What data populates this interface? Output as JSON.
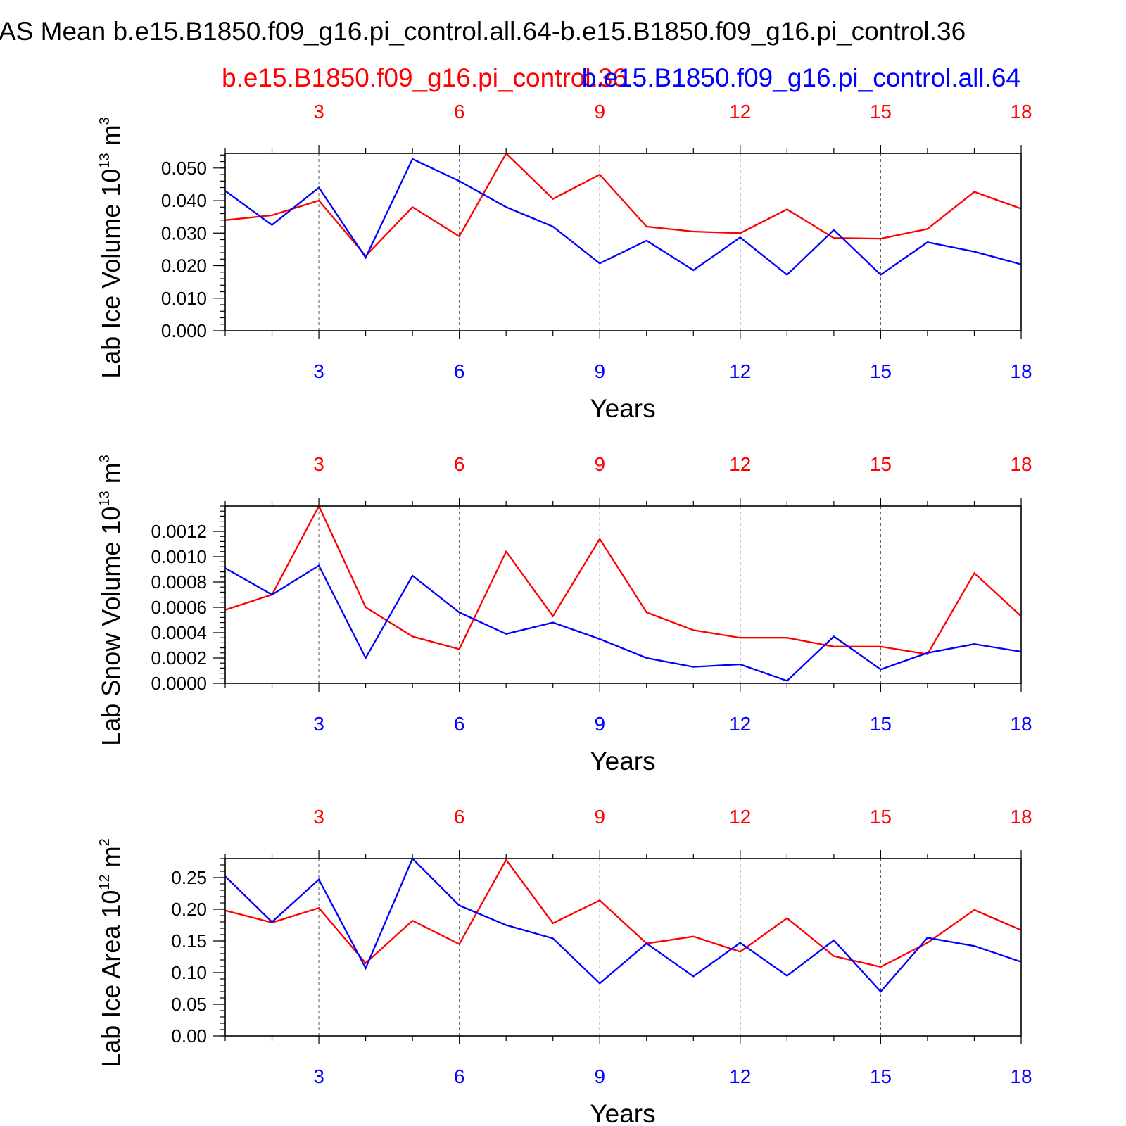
{
  "figure": {
    "main_title": "AS Mean b.e15.B1850.f09_g16.pi_control.all.64-b.e15.B1850.f09_g16.pi_control.36",
    "legend_red": "b.e15.B1850.f09_g16.pi_control.36",
    "legend_blue": "b.e15.B1850.f09_g16.pi_control.all.64",
    "colors": {
      "red": "#ff0000",
      "blue": "#0000ff"
    }
  },
  "chart_data": [
    {
      "type": "line",
      "id": "ice-volume",
      "ylabel": "Lab Ice Volume 10",
      "ylabel_exp": "13",
      "ylabel_unit": " m",
      "ylabel_unit_exp": "3",
      "xlabel": "Years",
      "xlim": [
        1,
        18
      ],
      "ylim": [
        0,
        0.0545
      ],
      "xticks": [
        3,
        6,
        9,
        12,
        15,
        18
      ],
      "yticks": [
        0.0,
        0.01,
        0.02,
        0.03,
        0.04,
        0.05
      ],
      "ytick_labels": [
        "0.000",
        "0.010",
        "0.020",
        "0.030",
        "0.040",
        "0.050"
      ],
      "yminor_step": 0.002,
      "x": [
        1,
        2,
        3,
        4,
        5,
        6,
        7,
        8,
        9,
        10,
        11,
        12,
        13,
        14,
        15,
        16,
        17,
        18
      ],
      "series": [
        {
          "name": "b.e15.B1850.f09_g16.pi_control.36",
          "color": "#ff0000",
          "values": [
            0.034,
            0.0355,
            0.04,
            0.023,
            0.038,
            0.029,
            0.0545,
            0.0405,
            0.048,
            0.032,
            0.0305,
            0.03,
            0.0373,
            0.0285,
            0.0283,
            0.0313,
            0.0427,
            0.0375
          ]
        },
        {
          "name": "b.e15.B1850.f09_g16.pi_control.all.64",
          "color": "#0000ff",
          "values": [
            0.043,
            0.0325,
            0.044,
            0.0225,
            0.0528,
            0.046,
            0.038,
            0.032,
            0.0207,
            0.0277,
            0.0186,
            0.0287,
            0.0172,
            0.031,
            0.0172,
            0.0272,
            0.0243,
            0.0204
          ]
        }
      ]
    },
    {
      "type": "line",
      "id": "snow-volume",
      "ylabel": "Lab Snow Volume 10",
      "ylabel_exp": "13",
      "ylabel_unit": " m",
      "ylabel_unit_exp": "3",
      "xlabel": "Years",
      "xlim": [
        1,
        18
      ],
      "ylim": [
        0,
        0.0014
      ],
      "xticks": [
        3,
        6,
        9,
        12,
        15,
        18
      ],
      "yticks": [
        0.0,
        0.0002,
        0.0004,
        0.0006,
        0.0008,
        0.001,
        0.0012
      ],
      "ytick_labels": [
        "0.0000",
        "0.0002",
        "0.0004",
        "0.0006",
        "0.0008",
        "0.0010",
        "0.0012"
      ],
      "yminor_step": 4e-05,
      "x": [
        1,
        2,
        3,
        4,
        5,
        6,
        7,
        8,
        9,
        10,
        11,
        12,
        13,
        14,
        15,
        16,
        17,
        18
      ],
      "series": [
        {
          "name": "b.e15.B1850.f09_g16.pi_control.36",
          "color": "#ff0000",
          "values": [
            0.00058,
            0.0007,
            0.0014,
            0.0006,
            0.00037,
            0.00027,
            0.00104,
            0.00053,
            0.00114,
            0.00056,
            0.00042,
            0.00036,
            0.00036,
            0.00029,
            0.00029,
            0.00023,
            0.00087,
            0.00053
          ]
        },
        {
          "name": "b.e15.B1850.f09_g16.pi_control.all.64",
          "color": "#0000ff",
          "values": [
            0.00091,
            0.0007,
            0.00093,
            0.0002,
            0.00085,
            0.00056,
            0.00039,
            0.00048,
            0.00035,
            0.0002,
            0.00013,
            0.00015,
            2e-05,
            0.00037,
            0.00011,
            0.00024,
            0.00031,
            0.00025
          ]
        }
      ]
    },
    {
      "type": "line",
      "id": "ice-area",
      "ylabel": "Lab Ice Area 10",
      "ylabel_exp": "12",
      "ylabel_unit": " m",
      "ylabel_unit_exp": "2",
      "xlabel": "Years",
      "xlim": [
        1,
        18
      ],
      "ylim": [
        0,
        0.28
      ],
      "xticks": [
        3,
        6,
        9,
        12,
        15,
        18
      ],
      "yticks": [
        0.0,
        0.05,
        0.1,
        0.15,
        0.2,
        0.25
      ],
      "ytick_labels": [
        "0.00",
        "0.05",
        "0.10",
        "0.15",
        "0.20",
        "0.25"
      ],
      "yminor_step": 0.01,
      "x": [
        1,
        2,
        3,
        4,
        5,
        6,
        7,
        8,
        9,
        10,
        11,
        12,
        13,
        14,
        15,
        16,
        17,
        18
      ],
      "series": [
        {
          "name": "b.e15.B1850.f09_g16.pi_control.36",
          "color": "#ff0000",
          "values": [
            0.198,
            0.179,
            0.202,
            0.115,
            0.182,
            0.145,
            0.278,
            0.178,
            0.214,
            0.146,
            0.157,
            0.133,
            0.186,
            0.126,
            0.109,
            0.147,
            0.199,
            0.167
          ]
        },
        {
          "name": "b.e15.B1850.f09_g16.pi_control.all.64",
          "color": "#0000ff",
          "values": [
            0.252,
            0.18,
            0.247,
            0.107,
            0.28,
            0.206,
            0.175,
            0.154,
            0.083,
            0.146,
            0.094,
            0.147,
            0.095,
            0.151,
            0.07,
            0.155,
            0.142,
            0.117
          ]
        }
      ]
    }
  ]
}
